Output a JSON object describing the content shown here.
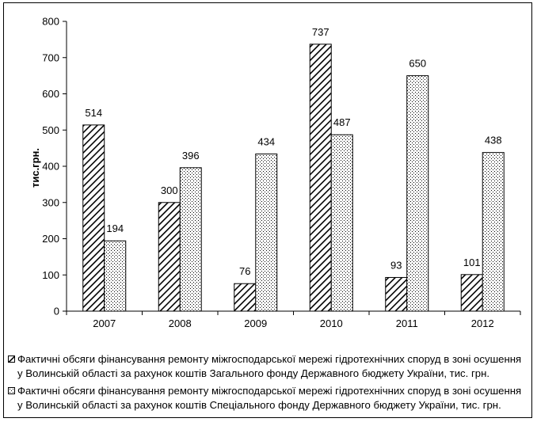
{
  "chart_data": {
    "type": "bar",
    "categories": [
      "2007",
      "2008",
      "2009",
      "2010",
      "2011",
      "2012"
    ],
    "series": [
      {
        "name": "Фактичні обсяги фінансування ремонту міжгосподарської мережі гідротехнічних споруд в зоні осушення у Волинській області за рахунок коштів Загального фонду Державного бюджету України, тис. грн.",
        "values": [
          514,
          300,
          76,
          737,
          93,
          101
        ],
        "pattern": "diagonal-hatch"
      },
      {
        "name": "Фактичні обсяги фінансування ремонту міжгосподарської мережі гідротехнічних споруд в зоні осушення у Волинській області за рахунок коштів Спеціального фонду Державного бюджету України, тис. грн.",
        "values": [
          194,
          396,
          434,
          487,
          650,
          438
        ],
        "pattern": "dots"
      }
    ],
    "title": "",
    "xlabel": "",
    "ylabel": "тис.грн.",
    "ylim": [
      0,
      800
    ],
    "yticks": [
      0,
      100,
      200,
      300,
      400,
      500,
      600,
      700,
      800
    ],
    "grid": false,
    "legend_position": "bottom",
    "colors": {
      "bar_fill": "#ffffff",
      "stroke": "#000000"
    }
  },
  "legend": {
    "items": [
      {
        "line1": "Фактичні обсяги фінансування ремонту міжгосподарської мережі гідротехнічних споруд в зоні осушення",
        "line2": "у Волинській області за рахунок коштів Загального фонду Державного бюджету України, тис. грн."
      },
      {
        "line1": "Фактичні обсяги фінансування ремонту міжгосподарської мережі гідротехнічних споруд в зоні осушення",
        "line2": "у Волинській області за рахунок коштів Спеціального фонду Державного бюджету України, тис. грн."
      }
    ]
  }
}
